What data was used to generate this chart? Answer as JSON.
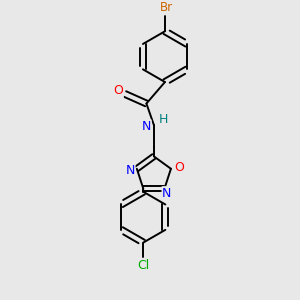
{
  "bg_color": "#e8e8e8",
  "bond_color": "#000000",
  "bond_width": 1.4,
  "atom_colors": {
    "Br": "#cc6600",
    "O": "#ff0000",
    "N": "#0000ff",
    "H": "#008080",
    "Cl": "#00aa00"
  },
  "fs": 8.5
}
